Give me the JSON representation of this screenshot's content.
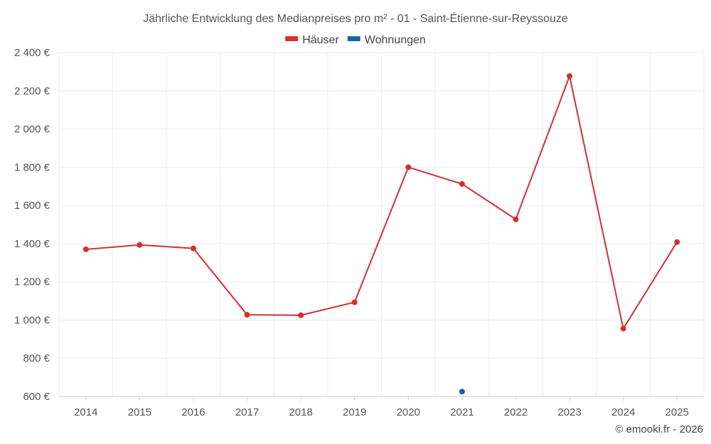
{
  "chart_data": {
    "type": "line",
    "title": "Jährliche Entwicklung des Medianpreises pro m² - 01 - Saint-Étienne-sur-Reyssouze",
    "xlabel": "",
    "ylabel": "",
    "x": [
      "2014",
      "2015",
      "2016",
      "2017",
      "2018",
      "2019",
      "2020",
      "2021",
      "2022",
      "2023",
      "2024",
      "2025"
    ],
    "ylim": [
      600,
      2400
    ],
    "yticks": [
      600,
      800,
      1000,
      1200,
      1400,
      1600,
      1800,
      2000,
      2200,
      2400
    ],
    "ytick_labels": [
      "600 €",
      "800 €",
      "1 000 €",
      "1 200 €",
      "1 400 €",
      "1 600 €",
      "1 800 €",
      "2 000 €",
      "2 200 €",
      "2 400 €"
    ],
    "grid": true,
    "legend_position": "top-center",
    "series": [
      {
        "name": "Häuser",
        "color": "#d32f2f",
        "values": [
          1370,
          1393,
          1375,
          1027,
          1025,
          1093,
          1800,
          1712,
          1527,
          2277,
          955,
          1408
        ]
      },
      {
        "name": "Wohnungen",
        "color": "#1565a0",
        "values": [
          null,
          null,
          null,
          null,
          null,
          null,
          null,
          625,
          null,
          null,
          null,
          null
        ]
      }
    ]
  },
  "credit": "© emooki.fr - 2026"
}
